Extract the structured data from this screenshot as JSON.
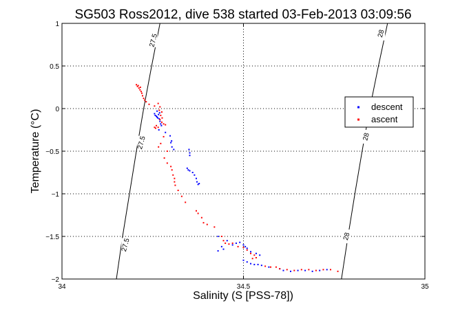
{
  "chart_data": {
    "type": "scatter",
    "title": "SG503 Ross2012, dive 538 started 03-Feb-2013 03:09:56",
    "xlabel": "Salinity (S [PSS-78])",
    "ylabel": "Temperature (°C)",
    "xlim": [
      34,
      35
    ],
    "ylim": [
      -2,
      1
    ],
    "xticks": [
      "34",
      "34.5",
      "35"
    ],
    "yticks": [
      "-2",
      "-1.5",
      "-1",
      "-0.5",
      "0",
      "0.5",
      "1"
    ],
    "grid": true,
    "legend_position": "right",
    "contours": [
      {
        "label": "27.5",
        "points": [
          [
            34.15,
            -2
          ],
          [
            34.167,
            -1.5
          ],
          [
            34.186,
            -1
          ],
          [
            34.205,
            -0.5
          ],
          [
            34.225,
            0
          ],
          [
            34.247,
            0.5
          ],
          [
            34.27,
            1
          ]
        ],
        "label_positions": [
          [
            34.252,
            0.8
          ],
          [
            34.219,
            -0.4
          ],
          [
            34.175,
            -1.6
          ]
        ]
      },
      {
        "label": "28",
        "points": [
          [
            34.77,
            -2
          ],
          [
            34.788,
            -1.5
          ],
          [
            34.807,
            -1
          ],
          [
            34.827,
            -0.5
          ],
          [
            34.848,
            0
          ],
          [
            34.872,
            0.5
          ],
          [
            34.897,
            1
          ]
        ],
        "label_positions": [
          [
            34.879,
            0.88
          ],
          [
            34.838,
            -0.33
          ],
          [
            34.784,
            -1.5
          ]
        ]
      }
    ],
    "series": [
      {
        "name": "descent",
        "color": "#0000ff",
        "points": [
          [
            34.255,
            -0.06
          ],
          [
            34.257,
            -0.08
          ],
          [
            34.26,
            -0.09
          ],
          [
            34.262,
            -0.1
          ],
          [
            34.264,
            -0.11
          ],
          [
            34.266,
            -0.07
          ],
          [
            34.268,
            -0.12
          ],
          [
            34.27,
            -0.15
          ],
          [
            34.272,
            -0.18
          ],
          [
            34.274,
            -0.2
          ],
          [
            34.269,
            -0.05
          ],
          [
            34.262,
            -0.03
          ],
          [
            34.267,
            -0.25
          ],
          [
            34.285,
            -0.28
          ],
          [
            34.298,
            -0.32
          ],
          [
            34.302,
            -0.38
          ],
          [
            34.3,
            -0.4
          ],
          [
            34.303,
            -0.45
          ],
          [
            34.308,
            -0.48
          ],
          [
            34.35,
            -0.48
          ],
          [
            34.352,
            -0.52
          ],
          [
            34.352,
            -0.55
          ],
          [
            34.345,
            -0.7
          ],
          [
            34.348,
            -0.72
          ],
          [
            34.352,
            -0.73
          ],
          [
            34.36,
            -0.75
          ],
          [
            34.365,
            -0.78
          ],
          [
            34.37,
            -0.82
          ],
          [
            34.372,
            -0.86
          ],
          [
            34.375,
            -0.89
          ],
          [
            34.378,
            -0.88
          ],
          [
            34.43,
            -1.5
          ],
          [
            34.455,
            -1.55
          ],
          [
            34.47,
            -1.6
          ],
          [
            34.48,
            -1.58
          ],
          [
            34.49,
            -1.57
          ],
          [
            34.5,
            -1.6
          ],
          [
            34.505,
            -1.62
          ],
          [
            34.51,
            -1.64
          ],
          [
            34.52,
            -1.68
          ],
          [
            34.535,
            -1.7
          ],
          [
            34.545,
            -1.72
          ],
          [
            34.44,
            -1.62
          ],
          [
            34.445,
            -1.65
          ],
          [
            34.43,
            -1.67
          ],
          [
            34.5,
            -1.78
          ],
          [
            34.51,
            -1.8
          ],
          [
            34.52,
            -1.82
          ],
          [
            34.53,
            -1.83
          ],
          [
            34.54,
            -1.83
          ],
          [
            34.55,
            -1.84
          ],
          [
            34.57,
            -1.86
          ],
          [
            34.6,
            -1.88
          ],
          [
            34.61,
            -1.9
          ],
          [
            34.63,
            -1.91
          ],
          [
            34.65,
            -1.9
          ],
          [
            34.67,
            -1.9
          ],
          [
            34.69,
            -1.91
          ],
          [
            34.71,
            -1.9
          ],
          [
            34.73,
            -1.89
          ]
        ]
      },
      {
        "name": "ascent",
        "color": "#ff0000",
        "points": [
          [
            34.205,
            0.28
          ],
          [
            34.208,
            0.26
          ],
          [
            34.212,
            0.24
          ],
          [
            34.215,
            0.22
          ],
          [
            34.218,
            0.2
          ],
          [
            34.22,
            0.18
          ],
          [
            34.222,
            0.15
          ],
          [
            34.225,
            0.12
          ],
          [
            34.228,
            0.1
          ],
          [
            34.232,
            0.08
          ],
          [
            34.21,
            0.27
          ],
          [
            34.216,
            0.25
          ],
          [
            34.24,
            0.05
          ],
          [
            34.255,
            0.03
          ],
          [
            34.265,
            0.06
          ],
          [
            34.27,
            0.02
          ],
          [
            34.268,
            -0.02
          ],
          [
            34.275,
            -0.04
          ],
          [
            34.272,
            -0.08
          ],
          [
            34.276,
            -0.11
          ],
          [
            34.27,
            -0.13
          ],
          [
            34.275,
            -0.16
          ],
          [
            34.28,
            -0.18
          ],
          [
            34.285,
            -0.19
          ],
          [
            34.265,
            -0.22
          ],
          [
            34.26,
            -0.2
          ],
          [
            34.258,
            -0.23
          ],
          [
            34.255,
            -0.22
          ],
          [
            34.28,
            -0.33
          ],
          [
            34.272,
            -0.41
          ],
          [
            34.266,
            -0.45
          ],
          [
            34.29,
            -0.5
          ],
          [
            34.282,
            -0.58
          ],
          [
            34.29,
            -0.64
          ],
          [
            34.3,
            -0.68
          ],
          [
            34.303,
            -0.72
          ],
          [
            34.306,
            -0.78
          ],
          [
            34.31,
            -0.82
          ],
          [
            34.31,
            -0.86
          ],
          [
            34.312,
            -0.9
          ],
          [
            34.32,
            -0.96
          ],
          [
            34.33,
            -1.03
          ],
          [
            34.34,
            -1.1
          ],
          [
            34.37,
            -1.2
          ],
          [
            34.375,
            -1.23
          ],
          [
            34.385,
            -1.28
          ],
          [
            34.39,
            -1.34
          ],
          [
            34.4,
            -1.36
          ],
          [
            34.42,
            -1.39
          ],
          [
            34.44,
            -1.5
          ],
          [
            34.445,
            -1.55
          ],
          [
            34.45,
            -1.58
          ],
          [
            34.46,
            -1.59
          ],
          [
            34.47,
            -1.58
          ],
          [
            34.485,
            -1.62
          ],
          [
            34.5,
            -1.63
          ],
          [
            34.51,
            -1.66
          ],
          [
            34.52,
            -1.7
          ],
          [
            34.53,
            -1.72
          ],
          [
            34.535,
            -1.75
          ],
          [
            34.525,
            -1.76
          ],
          [
            34.56,
            -1.85
          ],
          [
            34.575,
            -1.86
          ],
          [
            34.59,
            -1.86
          ],
          [
            34.6,
            -1.88
          ],
          [
            34.62,
            -1.89
          ],
          [
            34.64,
            -1.9
          ],
          [
            34.66,
            -1.89
          ],
          [
            34.68,
            -1.89
          ],
          [
            34.7,
            -1.9
          ],
          [
            34.72,
            -1.89
          ],
          [
            34.74,
            -1.89
          ],
          [
            34.76,
            -1.91
          ]
        ]
      }
    ]
  }
}
